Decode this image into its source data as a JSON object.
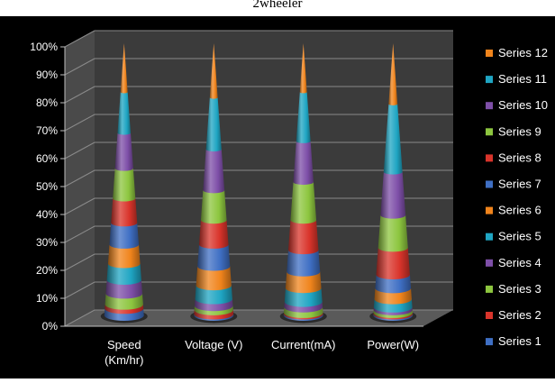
{
  "chart_data": {
    "type": "bar",
    "subtype": "3d-stacked-100-cone",
    "title": "2wheeler",
    "categories": [
      "Speed\n(Km/hr)",
      "Voltage (V)",
      "Current(mA)",
      "Power(W)"
    ],
    "y_axis": {
      "ticks": [
        "0%",
        "10%",
        "20%",
        "30%",
        "40%",
        "50%",
        "60%",
        "70%",
        "80%",
        "90%",
        "100%"
      ],
      "ylim": [
        0,
        100
      ]
    },
    "grid": true,
    "legend_position": "right",
    "series": [
      {
        "name": "Series 1",
        "color": "#3F6FC4",
        "values": [
          2.5,
          0.5,
          0.5,
          0.5
        ]
      },
      {
        "name": "Series 2",
        "color": "#D9342B",
        "values": [
          1.5,
          1.5,
          0.5,
          0.5
        ]
      },
      {
        "name": "Series 3",
        "color": "#8DC63F",
        "values": [
          4,
          1.5,
          2,
          1
        ]
      },
      {
        "name": "Series 4",
        "color": "#7E4FA8",
        "values": [
          5,
          2.5,
          2,
          1
        ]
      },
      {
        "name": "Series 5",
        "color": "#1FA5C3",
        "values": [
          6,
          5,
          5,
          3
        ]
      },
      {
        "name": "Series 6",
        "color": "#F0841C",
        "values": [
          7,
          7,
          6,
          4
        ]
      },
      {
        "name": "Series 7",
        "color": "#3F6FC4",
        "values": [
          8,
          8,
          8,
          5
        ]
      },
      {
        "name": "Series 8",
        "color": "#D9342B",
        "values": [
          9,
          9,
          11,
          10
        ]
      },
      {
        "name": "Series 9",
        "color": "#8DC63F",
        "values": [
          11,
          11,
          14,
          12
        ]
      },
      {
        "name": "Series 10",
        "color": "#7E4FA8",
        "values": [
          13,
          15,
          15,
          16
        ]
      },
      {
        "name": "Series 11",
        "color": "#1FA5C3",
        "values": [
          15,
          19,
          18,
          25
        ]
      },
      {
        "name": "Series 12",
        "color": "#F0841C",
        "values": [
          18,
          20,
          18,
          22.5
        ]
      }
    ]
  }
}
